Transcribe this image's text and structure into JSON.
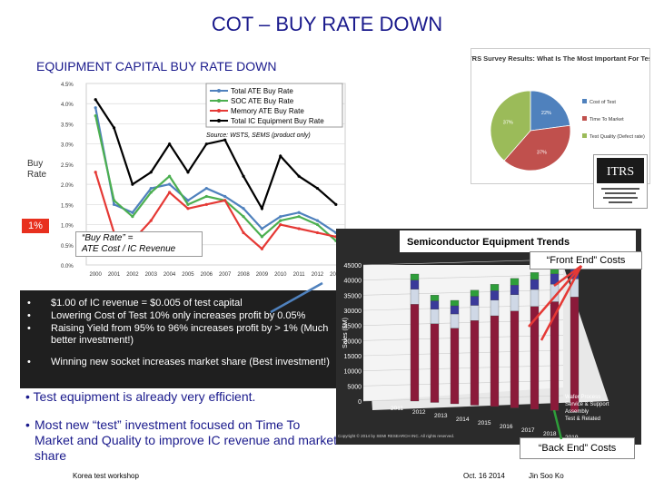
{
  "title": "COT – BUY RATE DOWN",
  "subtitle": "EQUIPMENT CAPITAL BUY RATE DOWN",
  "buy_rate_label": "Buy\nRate",
  "one_pct_tag": "1%",
  "equation_box": {
    "line1": "“Buy Rate” =",
    "line2": "ATE Cost / IC Revenue"
  },
  "bullets_box": [
    "$1.00 of IC revenue = $0.005 of test capital",
    "Lowering Cost of Test 10% only increases profit by 0.05%",
    "Raising Yield from 95% to 96%  increases profit by > 1% (Much better investment!)",
    "Winning new socket increases market share (Best investment!)"
  ],
  "point1": "Test equipment is already very efficient.",
  "point2": "Most new “test” investment focused on Time To Market and Quality to improve IC revenue and market share",
  "footer": {
    "left": "Korea test workshop",
    "date": "Oct. 16 2014",
    "author": "Jin Soo Ko"
  },
  "colors": {
    "title": "#1a1a8c",
    "highlight": "#e8301e",
    "dark_box": "#1f1f1f"
  },
  "chart_data": [
    {
      "type": "line",
      "title": "",
      "source_note": "Source: WSTS, SEMS (product only)",
      "x": [
        "2000",
        "2001",
        "2002",
        "2003",
        "2004",
        "2005",
        "2006",
        "2007",
        "2008",
        "2009",
        "2010",
        "2011",
        "2012",
        "2013"
      ],
      "y_ticks": [
        "0.0%",
        "0.5%",
        "1.0%",
        "1.5%",
        "2.0%",
        "2.5%",
        "3.0%",
        "3.5%",
        "4.0%",
        "4.5%"
      ],
      "ylim": [
        0,
        4.5
      ],
      "series": [
        {
          "name": "Total ATE Buy Rate",
          "color": "#4f81bd",
          "values": [
            3.9,
            1.5,
            1.3,
            1.9,
            2.0,
            1.6,
            1.9,
            1.7,
            1.4,
            0.9,
            1.2,
            1.3,
            1.1,
            0.8
          ]
        },
        {
          "name": "SOC ATE Buy Rate",
          "color": "#4caf50",
          "values": [
            3.7,
            1.6,
            1.2,
            1.8,
            2.2,
            1.5,
            1.7,
            1.6,
            1.2,
            0.7,
            1.1,
            1.2,
            1.0,
            0.6
          ]
        },
        {
          "name": "Memory ATE Buy Rate",
          "color": "#e53935",
          "values": [
            2.3,
            0.8,
            0.6,
            1.1,
            1.8,
            1.4,
            1.5,
            1.6,
            0.8,
            0.4,
            1.0,
            0.9,
            0.8,
            0.7
          ]
        },
        {
          "name": "Total IC Equipment Buy Rate",
          "color": "#000000",
          "values": [
            4.1,
            3.4,
            2.0,
            2.3,
            3.0,
            2.3,
            3.0,
            3.1,
            2.2,
            1.4,
            2.7,
            2.2,
            1.9,
            1.5
          ]
        }
      ]
    },
    {
      "type": "pie",
      "title": "ITRS Survey Results: What Is The Most Important For Test?",
      "categories": [
        "Cost of Test",
        "Time To Market",
        "Test Quality (Defect rate)"
      ],
      "values": [
        22,
        37,
        37
      ],
      "labels_shown": [
        "22%",
        "37%",
        "37%"
      ]
    },
    {
      "type": "bar",
      "title": "Semiconductor Equipment Trends",
      "ylabel": "Sales ($M)",
      "y_ticks": [
        "0",
        "5000",
        "10000",
        "15000",
        "20000",
        "25000",
        "30000",
        "35000",
        "40000",
        "45000"
      ],
      "ylim": [
        0,
        45000
      ],
      "x": [
        "2011",
        "2012",
        "2013",
        "2014",
        "2015",
        "2016",
        "2017",
        "2018",
        "2019"
      ],
      "series": [
        {
          "name": "Wafer Process",
          "values": [
            32000,
            26000,
            25000,
            28000,
            30000,
            32000,
            34000,
            36000,
            38000
          ]
        },
        {
          "name": "Service & Support",
          "values": [
            5000,
            4800,
            4700,
            5000,
            5200,
            5400,
            5600,
            5800,
            6000
          ]
        },
        {
          "name": "Assembly",
          "values": [
            3000,
            2800,
            2700,
            3000,
            3100,
            3200,
            3300,
            3400,
            3500
          ]
        },
        {
          "name": "Test & Related",
          "values": [
            2000,
            1900,
            1800,
            2000,
            2100,
            2200,
            2300,
            2400,
            2500
          ]
        }
      ],
      "legend": [
        "Wafer Process",
        "Service & Support",
        "Assembly",
        "Test & Related"
      ],
      "copyright": "Copyright © 2014 by SEMI RESEARCH INC. All rights reserved."
    }
  ],
  "callouts": {
    "front_end": "“Front End” Costs",
    "back_end": "“Back End” Costs"
  },
  "itrs_logo_text": "ITRS"
}
